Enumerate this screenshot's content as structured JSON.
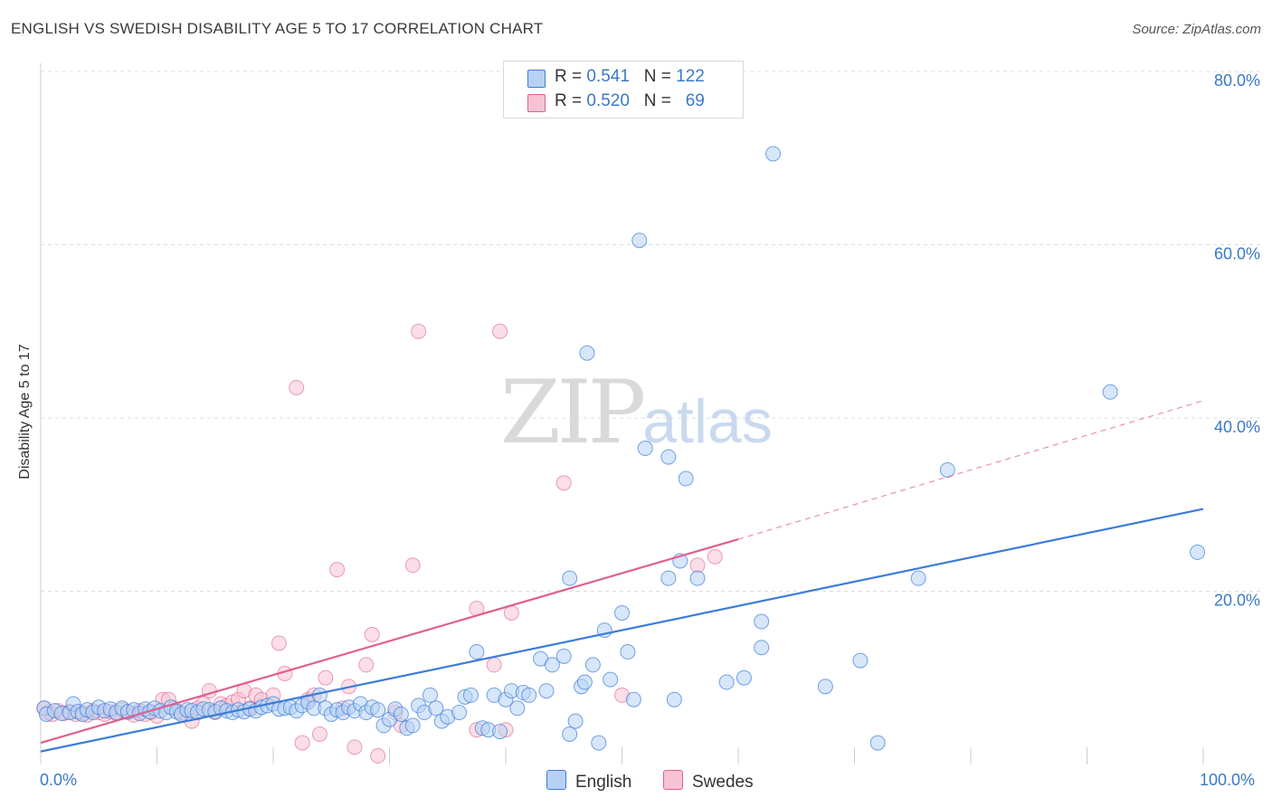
{
  "title": "ENGLISH VS SWEDISH DISABILITY AGE 5 TO 17 CORRELATION CHART",
  "source": "Source: ZipAtlas.com",
  "watermark": {
    "zip": "ZIP",
    "atlas": "atlas"
  },
  "colors": {
    "english": "#3b7dd8",
    "swedes": "#e0608e",
    "english_fill": "#b7d1f4",
    "swedes_fill": "#f7c3d4",
    "grid": "#dddddd",
    "axis_text": "#3a78c8"
  },
  "legend": {
    "rows": [
      {
        "r_label": "R = ",
        "r_value": "0.541",
        "n_label": "N = ",
        "n_value": "122"
      },
      {
        "r_label": "R = ",
        "r_value": "0.520",
        "n_label": "N = ",
        "n_value": "69"
      }
    ]
  },
  "bottom_legend": {
    "english": "English",
    "swedes": "Swedes"
  },
  "chart_data": {
    "type": "scatter",
    "title": "ENGLISH VS SWEDISH DISABILITY AGE 5 TO 17 CORRELATION CHART",
    "xlabel": "",
    "ylabel": "Disability Age 5 to 17",
    "xlim": [
      0,
      100
    ],
    "ylim": [
      0,
      82
    ],
    "x_tick_labels": [
      "0.0%",
      "100.0%"
    ],
    "y_tick_labels": [
      "20.0%",
      "40.0%",
      "60.0%",
      "80.0%"
    ],
    "y_ticks": [
      20,
      40,
      60,
      80
    ],
    "grid": true,
    "legend_position": "top-center",
    "series": [
      {
        "name": "English",
        "r": 0.541,
        "n": 122,
        "trend": {
          "x0": 0,
          "y0": 1.5,
          "x1": 100,
          "y1": 29.5
        },
        "points": [
          [
            0.3,
            6.5
          ],
          [
            0.5,
            5.8
          ],
          [
            1.2,
            6.2
          ],
          [
            1.8,
            5.9
          ],
          [
            2.5,
            6.0
          ],
          [
            2.8,
            7.0
          ],
          [
            3.2,
            6.1
          ],
          [
            3.6,
            5.8
          ],
          [
            4.0,
            6.3
          ],
          [
            4.5,
            6.0
          ],
          [
            5.0,
            6.6
          ],
          [
            5.5,
            6.2
          ],
          [
            6.0,
            6.4
          ],
          [
            6.5,
            6.0
          ],
          [
            7.0,
            6.5
          ],
          [
            7.5,
            6.1
          ],
          [
            8.0,
            6.3
          ],
          [
            8.5,
            5.9
          ],
          [
            9.0,
            6.4
          ],
          [
            9.4,
            6.1
          ],
          [
            9.8,
            6.5
          ],
          [
            10.3,
            6.2
          ],
          [
            10.8,
            6.0
          ],
          [
            11.2,
            6.6
          ],
          [
            11.7,
            6.1
          ],
          [
            12.1,
            5.8
          ],
          [
            12.6,
            6.3
          ],
          [
            13.0,
            6.2
          ],
          [
            13.5,
            6.0
          ],
          [
            14.0,
            6.4
          ],
          [
            14.5,
            6.3
          ],
          [
            15.0,
            6.1
          ],
          [
            15.5,
            6.5
          ],
          [
            16.0,
            6.2
          ],
          [
            16.5,
            6.0
          ],
          [
            17.0,
            6.3
          ],
          [
            17.5,
            6.1
          ],
          [
            18.0,
            6.4
          ],
          [
            18.5,
            6.2
          ],
          [
            19.0,
            6.6
          ],
          [
            19.5,
            6.8
          ],
          [
            20.0,
            7.0
          ],
          [
            20.5,
            6.4
          ],
          [
            21.0,
            6.5
          ],
          [
            21.5,
            6.6
          ],
          [
            22.0,
            6.2
          ],
          [
            22.5,
            6.8
          ],
          [
            23.0,
            7.2
          ],
          [
            23.5,
            6.5
          ],
          [
            24.0,
            8.0
          ],
          [
            24.5,
            6.5
          ],
          [
            25.0,
            5.8
          ],
          [
            25.5,
            6.3
          ],
          [
            26.0,
            6.0
          ],
          [
            26.5,
            6.6
          ],
          [
            27.0,
            6.2
          ],
          [
            27.5,
            7.0
          ],
          [
            28.0,
            6.0
          ],
          [
            28.5,
            6.6
          ],
          [
            29.0,
            6.3
          ],
          [
            29.5,
            4.5
          ],
          [
            30.0,
            5.2
          ],
          [
            30.5,
            6.4
          ],
          [
            31.0,
            5.8
          ],
          [
            31.5,
            4.2
          ],
          [
            32.0,
            4.5
          ],
          [
            32.5,
            6.8
          ],
          [
            33.0,
            6.0
          ],
          [
            33.5,
            8.0
          ],
          [
            34.0,
            6.5
          ],
          [
            34.5,
            5.0
          ],
          [
            35.0,
            5.5
          ],
          [
            36.0,
            6.0
          ],
          [
            36.5,
            7.8
          ],
          [
            37.0,
            8.0
          ],
          [
            37.5,
            13.0
          ],
          [
            38.0,
            4.2
          ],
          [
            38.5,
            4.0
          ],
          [
            39.0,
            8.0
          ],
          [
            39.5,
            3.8
          ],
          [
            40.0,
            7.5
          ],
          [
            40.5,
            8.5
          ],
          [
            41.0,
            6.5
          ],
          [
            41.5,
            8.3
          ],
          [
            42.0,
            8.0
          ],
          [
            43.0,
            12.2
          ],
          [
            43.5,
            8.5
          ],
          [
            44.0,
            11.5
          ],
          [
            45.0,
            12.5
          ],
          [
            45.5,
            21.5
          ],
          [
            45.5,
            3.5
          ],
          [
            46.0,
            5.0
          ],
          [
            46.5,
            9.0
          ],
          [
            46.8,
            9.5
          ],
          [
            47.0,
            47.5
          ],
          [
            47.5,
            11.5
          ],
          [
            48.0,
            2.5
          ],
          [
            48.5,
            15.5
          ],
          [
            49.0,
            9.8
          ],
          [
            50.0,
            17.5
          ],
          [
            50.5,
            13.0
          ],
          [
            51.0,
            7.5
          ],
          [
            51.5,
            60.5
          ],
          [
            52.0,
            36.5
          ],
          [
            54.5,
            7.5
          ],
          [
            54.0,
            21.5
          ],
          [
            54.0,
            35.5
          ],
          [
            55.0,
            23.5
          ],
          [
            55.5,
            33.0
          ],
          [
            56.5,
            21.5
          ],
          [
            59.0,
            9.5
          ],
          [
            60.5,
            10.0
          ],
          [
            62.0,
            16.5
          ],
          [
            62.0,
            13.5
          ],
          [
            63.0,
            70.5
          ],
          [
            67.5,
            9.0
          ],
          [
            70.5,
            12.0
          ],
          [
            72.0,
            2.5
          ],
          [
            75.5,
            21.5
          ],
          [
            78.0,
            34.0
          ],
          [
            92.0,
            43.0
          ],
          [
            99.5,
            24.5
          ]
        ]
      },
      {
        "name": "Swedes",
        "r": 0.52,
        "n": 69,
        "trend": {
          "x0": 0,
          "y0": 2.5,
          "x1": 60,
          "y1": 26.0
        },
        "trend_dashed": {
          "x0": 60,
          "y0": 26.0,
          "x1": 100,
          "y1": 42.0
        },
        "points": [
          [
            0.3,
            6.5
          ],
          [
            0.6,
            6.0
          ],
          [
            1.0,
            5.8
          ],
          [
            1.5,
            6.2
          ],
          [
            2.0,
            5.9
          ],
          [
            2.5,
            6.1
          ],
          [
            3.0,
            5.8
          ],
          [
            3.5,
            6.0
          ],
          [
            4.0,
            5.7
          ],
          [
            4.5,
            6.2
          ],
          [
            5.0,
            6.0
          ],
          [
            5.5,
            5.8
          ],
          [
            6.0,
            6.1
          ],
          [
            6.5,
            5.9
          ],
          [
            7.0,
            6.3
          ],
          [
            7.5,
            6.0
          ],
          [
            8.0,
            5.7
          ],
          [
            8.5,
            6.2
          ],
          [
            9.0,
            5.8
          ],
          [
            9.5,
            6.0
          ],
          [
            10.0,
            5.6
          ],
          [
            10.5,
            7.5
          ],
          [
            11.0,
            7.5
          ],
          [
            11.5,
            6.5
          ],
          [
            12.0,
            6.0
          ],
          [
            12.5,
            5.8
          ],
          [
            13.0,
            5.0
          ],
          [
            13.5,
            6.5
          ],
          [
            14.0,
            7.0
          ],
          [
            14.5,
            8.5
          ],
          [
            15.0,
            6.0
          ],
          [
            15.5,
            7.0
          ],
          [
            16.0,
            6.8
          ],
          [
            16.5,
            7.2
          ],
          [
            17.0,
            7.5
          ],
          [
            17.5,
            8.5
          ],
          [
            18.0,
            6.5
          ],
          [
            18.5,
            8.0
          ],
          [
            19.0,
            7.5
          ],
          [
            20.0,
            8.0
          ],
          [
            20.5,
            14.0
          ],
          [
            21.0,
            10.5
          ],
          [
            22.0,
            43.5
          ],
          [
            22.5,
            2.5
          ],
          [
            23.0,
            7.5
          ],
          [
            23.5,
            8.0
          ],
          [
            24.0,
            3.5
          ],
          [
            24.5,
            10.0
          ],
          [
            25.5,
            22.5
          ],
          [
            26.0,
            6.5
          ],
          [
            26.5,
            9.0
          ],
          [
            27.0,
            2.0
          ],
          [
            28.0,
            11.5
          ],
          [
            28.5,
            15.0
          ],
          [
            29.0,
            1.0
          ],
          [
            30.5,
            6.0
          ],
          [
            31.0,
            4.5
          ],
          [
            32.0,
            23.0
          ],
          [
            32.5,
            50.0
          ],
          [
            37.5,
            4.0
          ],
          [
            37.5,
            18.0
          ],
          [
            39.0,
            11.5
          ],
          [
            39.5,
            50.0
          ],
          [
            40.0,
            4.0
          ],
          [
            40.5,
            17.5
          ],
          [
            45.0,
            32.5
          ],
          [
            50.0,
            8.0
          ],
          [
            56.5,
            23.0
          ],
          [
            58.0,
            24.0
          ]
        ]
      }
    ]
  }
}
